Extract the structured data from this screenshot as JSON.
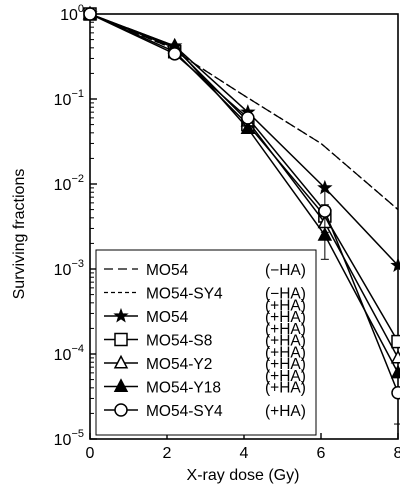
{
  "chart_data": {
    "type": "line",
    "title": "",
    "xlabel": "X-ray dose (Gy)",
    "ylabel": "Surviving fractions",
    "xlim": [
      0,
      8
    ],
    "ylim": [
      1e-05,
      1
    ],
    "yscale": "log",
    "grid": false,
    "legend_position": "bottom-left",
    "x_ticks": [
      {
        "value": 0,
        "label": "0"
      },
      {
        "value": 2,
        "label": "2"
      },
      {
        "value": 4,
        "label": "4"
      },
      {
        "value": 6,
        "label": "6"
      },
      {
        "value": 8,
        "label": "8"
      }
    ],
    "y_ticks": [
      {
        "value": 1,
        "base": "10",
        "exp": "0"
      },
      {
        "value": 0.1,
        "base": "10",
        "exp": "−1"
      },
      {
        "value": 0.01,
        "base": "10",
        "exp": "−2"
      },
      {
        "value": 0.001,
        "base": "10",
        "exp": "−3"
      },
      {
        "value": 0.0001,
        "base": "10",
        "exp": "−4"
      },
      {
        "value": 1e-05,
        "base": "10",
        "exp": "−5"
      }
    ],
    "series": [
      {
        "name": "MO54",
        "condition": "(−HA)",
        "line": "dashed",
        "marker": "none",
        "x": [
          0,
          2,
          4,
          6,
          8
        ],
        "y": [
          1,
          0.42,
          0.11,
          0.03,
          0.005
        ]
      },
      {
        "name": "MO54-SY4",
        "condition": "(−HA)",
        "line": "dotted",
        "marker": "none",
        "x": [
          0,
          2,
          4,
          6,
          8
        ],
        "y": [
          1,
          0.42,
          0.11,
          0.03,
          0.005
        ]
      },
      {
        "name": "MO54",
        "condition": "(+HA)",
        "line": "solid",
        "marker": "star",
        "x": [
          0,
          2.2,
          4.1,
          6.1,
          8
        ],
        "y": [
          1,
          0.42,
          0.07,
          0.009,
          0.0011
        ],
        "err": [
          0,
          0,
          0,
          0,
          0
        ]
      },
      {
        "name": "MO54-S8",
        "condition": "(+HA)",
        "line": "solid",
        "marker": "square-open",
        "x": [
          0,
          2.2,
          4.1,
          6.1,
          8
        ],
        "y": [
          1,
          0.36,
          0.05,
          0.0042,
          0.00014
        ],
        "err": [
          0,
          0,
          0,
          0.0015,
          0
        ]
      },
      {
        "name": "MO54-Y2",
        "condition": "(+HA)",
        "line": "solid",
        "marker": "triangle-open",
        "x": [
          0,
          2.2,
          4.1,
          6.1,
          8
        ],
        "y": [
          1,
          0.4,
          0.055,
          0.0035,
          9e-05
        ],
        "err": [
          0,
          0,
          0,
          0,
          0
        ]
      },
      {
        "name": "MO54-Y18",
        "condition": "(+HA)",
        "line": "solid",
        "marker": "triangle-filled",
        "x": [
          0,
          2.2,
          4.1,
          6.1,
          8
        ],
        "y": [
          1,
          0.42,
          0.045,
          0.0025,
          6e-05
        ],
        "err": [
          0,
          0,
          0,
          0,
          0
        ]
      },
      {
        "name": "MO54-SY4",
        "condition": "(+HA)",
        "line": "solid",
        "marker": "circle-open",
        "x": [
          0,
          2.2,
          4.1,
          6.1,
          8
        ],
        "y": [
          1,
          0.34,
          0.06,
          0.0048,
          3.5e-05
        ],
        "err": [
          0,
          0,
          0,
          0.0035,
          2e-05
        ]
      }
    ],
    "legend_extra_labels": [
      "(+HA)",
      "(+HA)",
      "(+HA)",
      "(+HA)"
    ]
  }
}
